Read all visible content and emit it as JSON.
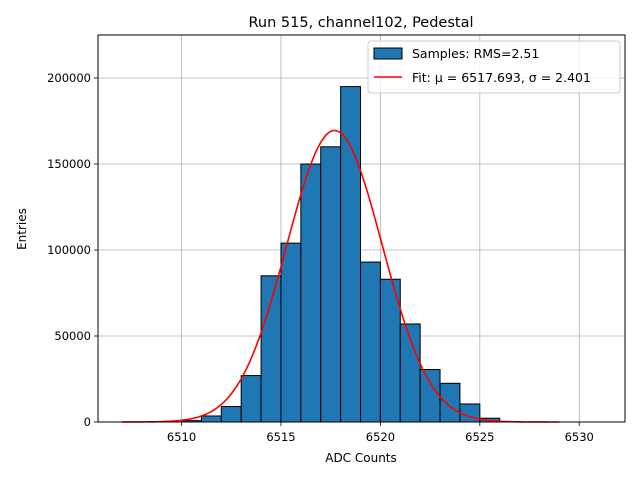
{
  "chart_data": {
    "type": "bar",
    "title": "Run 515, channel102, Pedestal",
    "xlabel": "ADC Counts",
    "ylabel": "Entries",
    "xlim": [
      6505.8,
      6532.3
    ],
    "ylim": [
      0,
      225000
    ],
    "grid": true,
    "legend_position": "top-right",
    "x_ticks": [
      6510,
      6515,
      6520,
      6525,
      6530
    ],
    "y_ticks": [
      0,
      50000,
      100000,
      150000,
      200000
    ],
    "histogram": {
      "name": "Samples: RMS=2.51",
      "color": "#1f77b4",
      "edge_color": "#000000",
      "bins": [
        {
          "left": 6510,
          "right": 6511,
          "value": 800
        },
        {
          "left": 6511,
          "right": 6512,
          "value": 3500
        },
        {
          "left": 6512,
          "right": 6513,
          "value": 9000
        },
        {
          "left": 6513,
          "right": 6514,
          "value": 27000
        },
        {
          "left": 6514,
          "right": 6515,
          "value": 85000
        },
        {
          "left": 6515,
          "right": 6516,
          "value": 104000
        },
        {
          "left": 6516,
          "right": 6517,
          "value": 150000
        },
        {
          "left": 6517,
          "right": 6518,
          "value": 160000
        },
        {
          "left": 6518,
          "right": 6519,
          "value": 195000
        },
        {
          "left": 6519,
          "right": 6520,
          "value": 93000
        },
        {
          "left": 6520,
          "right": 6521,
          "value": 83000
        },
        {
          "left": 6521,
          "right": 6522,
          "value": 57000
        },
        {
          "left": 6522,
          "right": 6523,
          "value": 30500
        },
        {
          "left": 6523,
          "right": 6524,
          "value": 22500
        },
        {
          "left": 6524,
          "right": 6525,
          "value": 10500
        },
        {
          "left": 6525,
          "right": 6526,
          "value": 2200
        },
        {
          "left": 6526,
          "right": 6527,
          "value": 300
        }
      ]
    },
    "fit": {
      "name": "Fit: μ = 6517.693, σ = 2.401",
      "color": "#ff0000",
      "mu": 6517.693,
      "sigma": 2.401,
      "amplitude": 169500,
      "x_range": [
        6507,
        6529
      ]
    }
  }
}
